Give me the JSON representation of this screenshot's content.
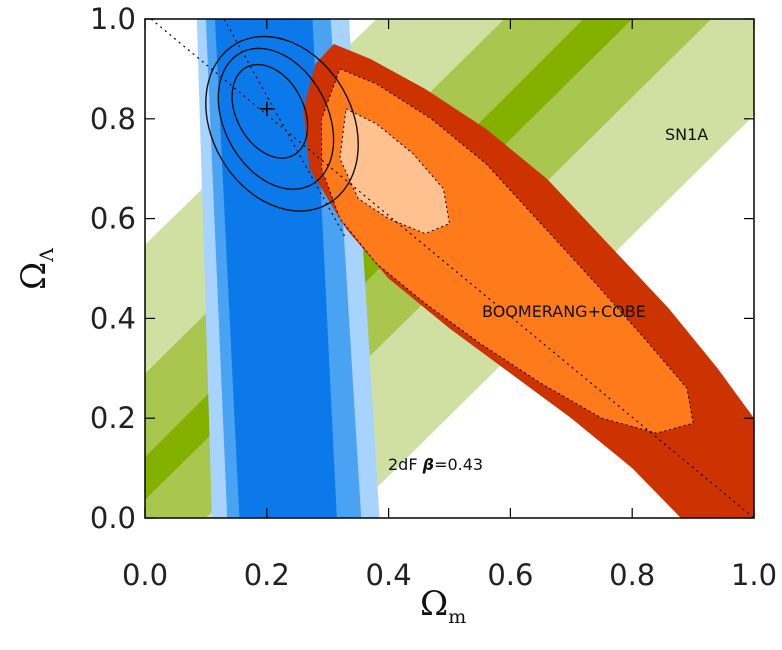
{
  "chart_data": {
    "type": "contour",
    "xlabel": "Ω",
    "xlabel_sub": "m",
    "ylabel": "Ω",
    "ylabel_sub": "Λ",
    "xlim": [
      0.0,
      1.0
    ],
    "ylim": [
      0.0,
      1.0
    ],
    "x_ticks": [
      "0.0",
      "0.2",
      "0.4",
      "0.6",
      "0.8",
      "1.0"
    ],
    "y_ticks": [
      "0.0",
      "0.2",
      "0.4",
      "0.6",
      "0.8",
      "1.0"
    ],
    "grid": false,
    "colors": {
      "sn_outer": "#cfe0a2",
      "sn_mid": "#a9c74e",
      "sn_inner": "#84b000",
      "df_outer": "#a9d3ff",
      "df_mid": "#4aa2f2",
      "df_inner": "#0b79ea",
      "boom_outer": "#cc3300",
      "boom_mid": "#ff7a1a",
      "boom_inner": "#ffc190"
    },
    "annotations": {
      "sn": "SN1A",
      "boom": "BOOMERANG+COBE",
      "df_prefix": "2dF ",
      "df_beta": "β",
      "df_suffix": "=0.43"
    },
    "best_fit": {
      "x": 0.2,
      "y": 0.82
    },
    "regions": {
      "sn1a": {
        "confidence_levels": [
          {
            "x1": -0.1,
            "y1": 0.0,
            "x2": 0.72,
            "y2": 1.0
          },
          {
            "x1": -0.24,
            "y1": 0.0,
            "x2": 0.59,
            "y2": 1.0
          },
          {
            "x1": -0.46,
            "y1": 0.0,
            "x2": 0.38,
            "y2": 1.0
          },
          {
            "x1": -0.03,
            "y1": 0.0,
            "x2": 0.8,
            "y2": 1.0
          },
          {
            "x1": 0.1,
            "y1": 0.0,
            "x2": 0.93,
            "y2": 1.0
          },
          {
            "x1": 0.33,
            "y1": 0.0,
            "x2": 1.16,
            "y2": 1.0
          }
        ]
      },
      "twodf": {
        "bands": [
          {
            "xb_lo": 0.11,
            "xb_hi": 0.385,
            "xt_lo": 0.085,
            "xt_hi": 0.335
          },
          {
            "xb_lo": 0.135,
            "xb_hi": 0.355,
            "xt_lo": 0.1,
            "xt_hi": 0.305
          },
          {
            "xb_lo": 0.155,
            "xb_hi": 0.315,
            "xt_lo": 0.115,
            "xt_hi": 0.275
          }
        ]
      },
      "boomerang": {
        "outer": [
          [
            0.31,
            0.95
          ],
          [
            0.37,
            0.92
          ],
          [
            0.46,
            0.86
          ],
          [
            0.56,
            0.78
          ],
          [
            0.66,
            0.68
          ],
          [
            0.76,
            0.55
          ],
          [
            0.86,
            0.42
          ],
          [
            0.94,
            0.3
          ],
          [
            1.0,
            0.2
          ],
          [
            1.0,
            0.0
          ],
          [
            0.88,
            0.0
          ],
          [
            0.8,
            0.1
          ],
          [
            0.7,
            0.2
          ],
          [
            0.6,
            0.29
          ],
          [
            0.5,
            0.38
          ],
          [
            0.4,
            0.48
          ],
          [
            0.33,
            0.58
          ],
          [
            0.27,
            0.7
          ],
          [
            0.26,
            0.82
          ],
          [
            0.28,
            0.91
          ]
        ],
        "mid": [
          [
            0.32,
            0.9
          ],
          [
            0.38,
            0.87
          ],
          [
            0.47,
            0.8
          ],
          [
            0.56,
            0.71
          ],
          [
            0.65,
            0.59
          ],
          [
            0.74,
            0.47
          ],
          [
            0.82,
            0.36
          ],
          [
            0.89,
            0.26
          ],
          [
            0.9,
            0.19
          ],
          [
            0.84,
            0.17
          ],
          [
            0.75,
            0.2
          ],
          [
            0.65,
            0.27
          ],
          [
            0.55,
            0.35
          ],
          [
            0.46,
            0.43
          ],
          [
            0.38,
            0.51
          ],
          [
            0.32,
            0.6
          ],
          [
            0.29,
            0.7
          ],
          [
            0.29,
            0.8
          ]
        ],
        "inner": [
          [
            0.33,
            0.82
          ],
          [
            0.38,
            0.79
          ],
          [
            0.44,
            0.73
          ],
          [
            0.49,
            0.66
          ],
          [
            0.5,
            0.59
          ],
          [
            0.46,
            0.57
          ],
          [
            0.4,
            0.6
          ],
          [
            0.35,
            0.64
          ],
          [
            0.32,
            0.72
          ]
        ]
      },
      "combined_contours": [
        {
          "cx": 0.205,
          "cy": 0.815,
          "rx": 0.055,
          "ry": 0.1,
          "rot": -28
        },
        {
          "cx": 0.215,
          "cy": 0.8,
          "rx": 0.085,
          "ry": 0.15,
          "rot": -28
        },
        {
          "cx": 0.225,
          "cy": 0.79,
          "rx": 0.115,
          "ry": 0.185,
          "rot": -30
        }
      ],
      "dotted_lines": [
        [
          [
            0.01,
            1.0
          ],
          [
            1.0,
            0.0
          ]
        ],
        [
          [
            0.13,
            1.0
          ],
          [
            0.33,
            0.56
          ]
        ]
      ]
    }
  }
}
